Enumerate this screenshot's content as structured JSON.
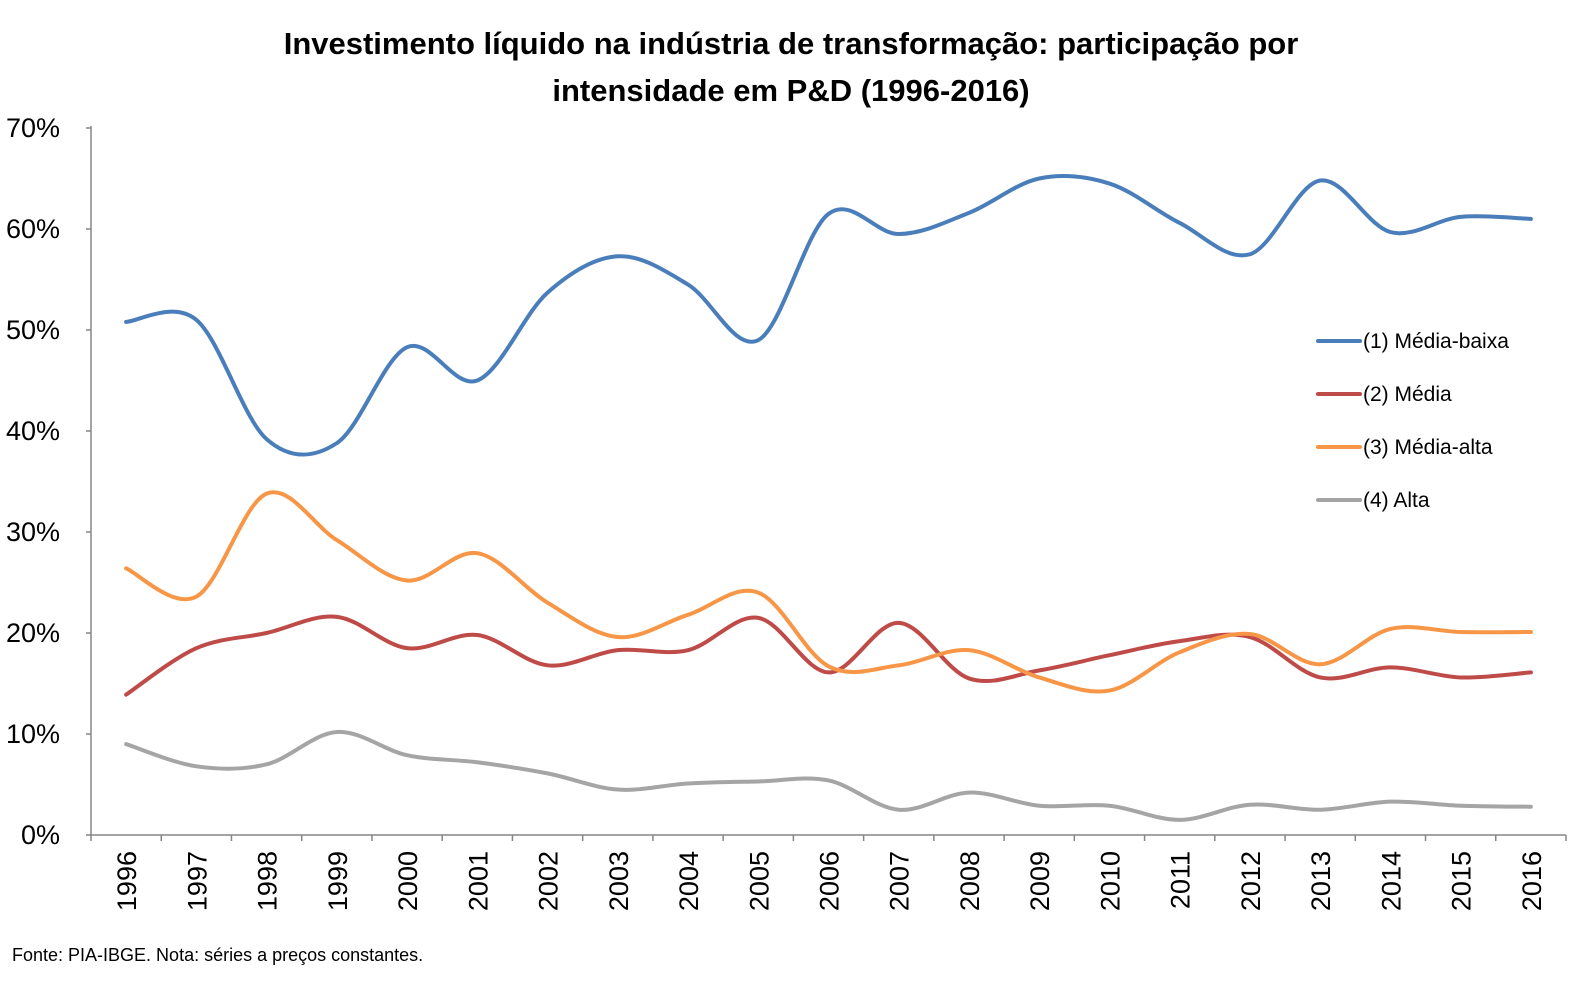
{
  "chart_data": {
    "type": "line",
    "title_lines": [
      "Investimento líquido na indústria de transformação: participação por",
      "intensidade em P&D (1996-2016)"
    ],
    "xlabel": "",
    "ylabel": "",
    "x": [
      "1996",
      "1997",
      "1998",
      "1999",
      "2000",
      "2001",
      "2002",
      "2003",
      "2004",
      "2005",
      "2006",
      "2007",
      "2008",
      "2009",
      "2010",
      "2011",
      "2012",
      "2013",
      "2014",
      "2015",
      "2016"
    ],
    "ylim": [
      0,
      0.7
    ],
    "y_ticks": [
      0,
      0.1,
      0.2,
      0.3,
      0.4,
      0.5,
      0.6,
      0.7
    ],
    "y_tick_labels": [
      "0%",
      "10%",
      "20%",
      "30%",
      "40%",
      "50%",
      "60%",
      "70%"
    ],
    "grid": false,
    "legend_position": "right",
    "series": [
      {
        "name": "(1) Média-baixa",
        "color": "#4A7EBB",
        "values": [
          0.508,
          0.51,
          0.392,
          0.388,
          0.483,
          0.45,
          0.537,
          0.573,
          0.545,
          0.49,
          0.615,
          0.595,
          0.616,
          0.65,
          0.645,
          0.606,
          0.575,
          0.648,
          0.597,
          0.612,
          0.61
        ]
      },
      {
        "name": "(2) Média",
        "color": "#BE4B48",
        "values": [
          0.139,
          0.185,
          0.2,
          0.216,
          0.185,
          0.198,
          0.168,
          0.183,
          0.183,
          0.215,
          0.161,
          0.21,
          0.155,
          0.163,
          0.178,
          0.192,
          0.196,
          0.156,
          0.166,
          0.156,
          0.161
        ]
      },
      {
        "name": "(3) Média-alta",
        "color": "#F79646",
        "values": [
          0.264,
          0.236,
          0.338,
          0.292,
          0.252,
          0.279,
          0.23,
          0.196,
          0.218,
          0.24,
          0.167,
          0.168,
          0.183,
          0.156,
          0.143,
          0.181,
          0.199,
          0.169,
          0.204,
          0.201,
          0.201
        ]
      },
      {
        "name": "(4) Alta",
        "color": "#A5A5A5",
        "values": [
          0.09,
          0.068,
          0.07,
          0.102,
          0.079,
          0.072,
          0.061,
          0.045,
          0.051,
          0.053,
          0.054,
          0.025,
          0.042,
          0.029,
          0.029,
          0.015,
          0.03,
          0.025,
          0.033,
          0.029,
          0.028
        ]
      }
    ],
    "source_note": "Fonte: PIA-IBGE. Nota: séries a preços constantes."
  }
}
